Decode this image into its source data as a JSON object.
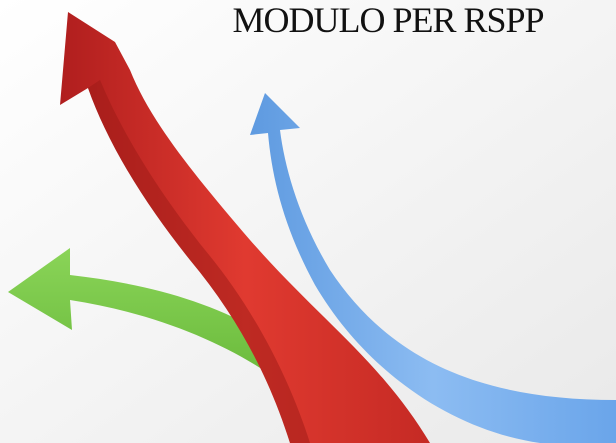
{
  "title": "MODULO PER RSPP"
}
